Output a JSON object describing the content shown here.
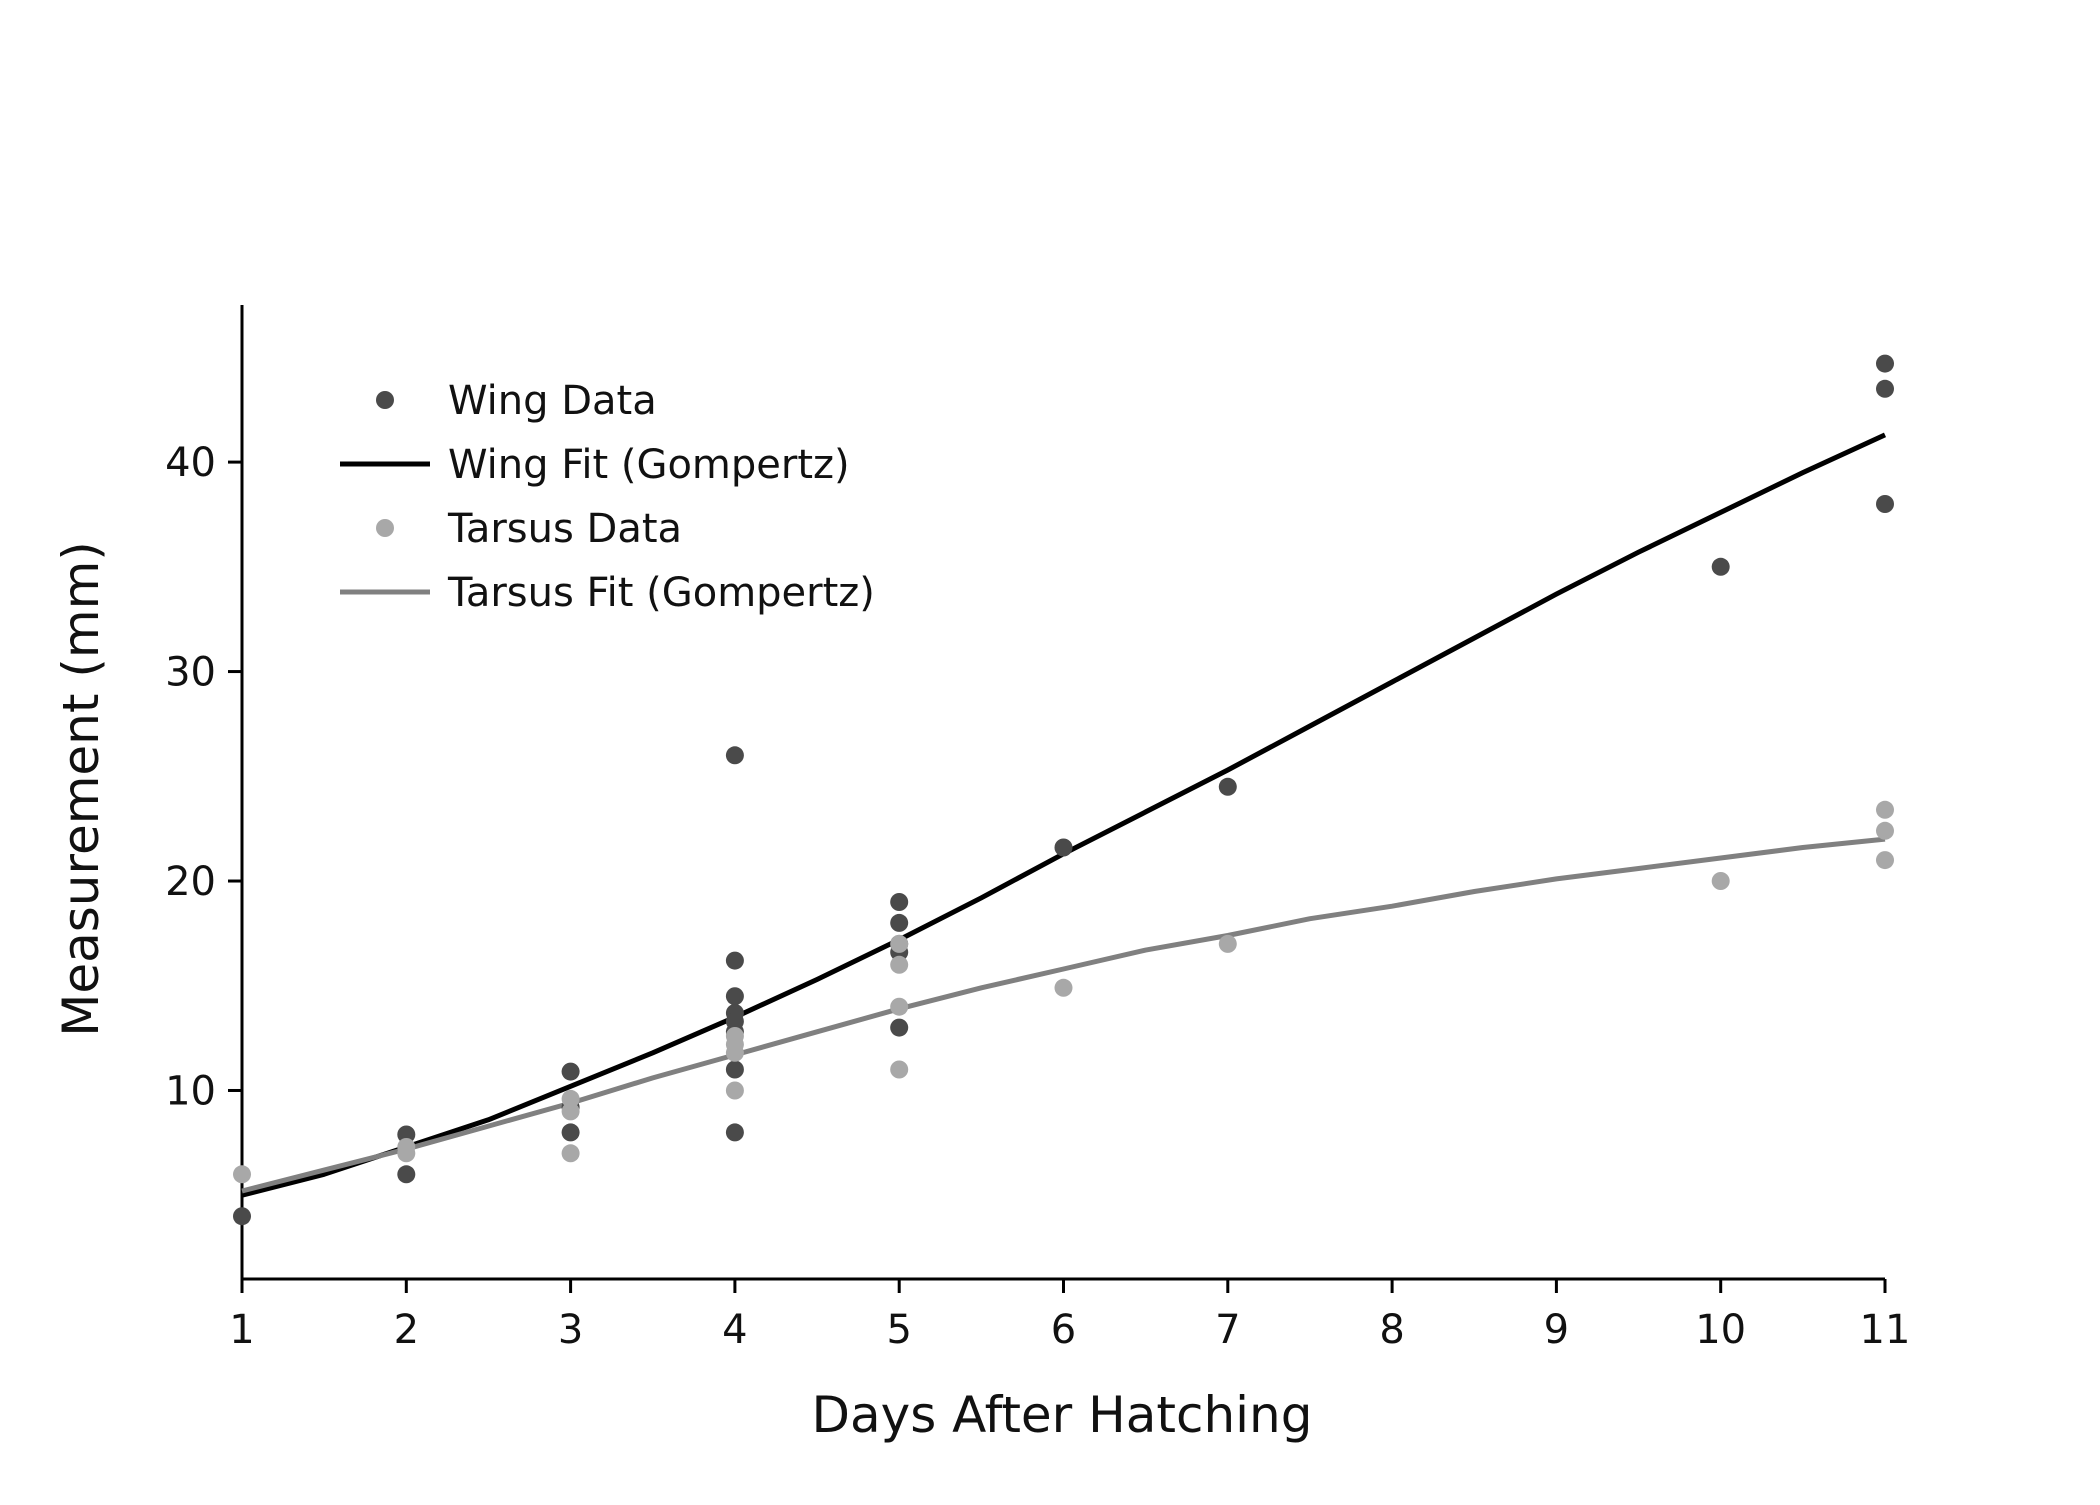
{
  "chart_data": {
    "type": "scatter",
    "title": "",
    "xlabel": "Days After Hatching",
    "ylabel": "Measurement (mm)",
    "xlim": [
      1,
      11
    ],
    "ylim": [
      1,
      47.5
    ],
    "xticks": [
      1,
      2,
      3,
      4,
      5,
      6,
      7,
      8,
      9,
      10,
      11
    ],
    "yticks": [
      10,
      20,
      30,
      40
    ],
    "grid": false,
    "legend_position": "top-left",
    "series": [
      {
        "name": "Wing Data",
        "kind": "scatter",
        "color": "#4a4a4a",
        "points": [
          [
            1,
            4
          ],
          [
            2,
            7.9
          ],
          [
            2,
            6
          ],
          [
            3,
            10.9
          ],
          [
            3,
            8
          ],
          [
            3,
            9.2
          ],
          [
            4,
            26
          ],
          [
            4,
            16.2
          ],
          [
            4,
            14.5
          ],
          [
            4,
            13.7
          ],
          [
            4,
            13.3
          ],
          [
            4,
            12.8
          ],
          [
            4,
            11
          ],
          [
            4,
            8
          ],
          [
            5,
            19
          ],
          [
            5,
            18
          ],
          [
            5,
            17
          ],
          [
            5,
            16.6
          ],
          [
            5,
            13
          ],
          [
            6,
            21.6
          ],
          [
            7,
            24.5
          ],
          [
            10,
            35
          ],
          [
            11,
            44.7
          ],
          [
            11,
            43.5
          ],
          [
            11,
            38
          ]
        ]
      },
      {
        "name": "Wing Fit (Gompertz)",
        "kind": "line",
        "color": "#000000",
        "points": [
          [
            1,
            5
          ],
          [
            1.5,
            6
          ],
          [
            2,
            7.3
          ],
          [
            2.5,
            8.6
          ],
          [
            3,
            10.2
          ],
          [
            3.5,
            11.8
          ],
          [
            4,
            13.5
          ],
          [
            4.5,
            15.3
          ],
          [
            5,
            17.2
          ],
          [
            5.5,
            19.2
          ],
          [
            6,
            21.3
          ],
          [
            6.5,
            23.3
          ],
          [
            7,
            25.3
          ],
          [
            7.5,
            27.4
          ],
          [
            8,
            29.5
          ],
          [
            8.5,
            31.6
          ],
          [
            9,
            33.7
          ],
          [
            9.5,
            35.7
          ],
          [
            10,
            37.6
          ],
          [
            10.5,
            39.5
          ],
          [
            11,
            41.3
          ]
        ]
      },
      {
        "name": "Tarsus Data",
        "kind": "scatter",
        "color": "#a8a8a8",
        "points": [
          [
            1,
            6
          ],
          [
            2,
            7.3
          ],
          [
            2,
            7
          ],
          [
            3,
            9.6
          ],
          [
            3,
            9
          ],
          [
            3,
            7
          ],
          [
            4,
            12.6
          ],
          [
            4,
            12.2
          ],
          [
            4,
            11.8
          ],
          [
            4,
            10
          ],
          [
            5,
            17
          ],
          [
            5,
            16
          ],
          [
            5,
            14
          ],
          [
            5,
            11
          ],
          [
            6,
            14.9
          ],
          [
            7,
            17
          ],
          [
            10,
            20
          ],
          [
            11,
            23.4
          ],
          [
            11,
            22.4
          ],
          [
            11,
            21
          ]
        ]
      },
      {
        "name": "Tarsus Fit (Gompertz)",
        "kind": "line",
        "color": "#808080",
        "points": [
          [
            1,
            5.2
          ],
          [
            1.5,
            6.2
          ],
          [
            2,
            7.2
          ],
          [
            2.5,
            8.3
          ],
          [
            3,
            9.4
          ],
          [
            3.5,
            10.6
          ],
          [
            4,
            11.7
          ],
          [
            4.5,
            12.8
          ],
          [
            5,
            13.9
          ],
          [
            5.5,
            14.9
          ],
          [
            6,
            15.8
          ],
          [
            6.5,
            16.7
          ],
          [
            7,
            17.4
          ],
          [
            7.5,
            18.2
          ],
          [
            8,
            18.8
          ],
          [
            8.5,
            19.5
          ],
          [
            9,
            20.1
          ],
          [
            9.5,
            20.6
          ],
          [
            10,
            21.1
          ],
          [
            10.5,
            21.6
          ],
          [
            11,
            22
          ]
        ]
      }
    ]
  }
}
